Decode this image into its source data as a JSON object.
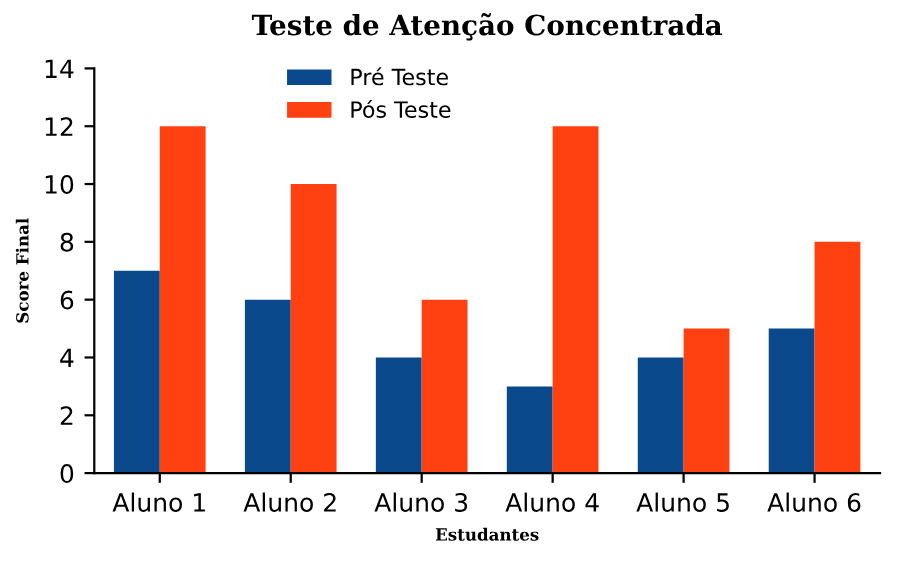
{
  "chart_data": {
    "type": "bar",
    "title": "Teste de Atenção Concentrada",
    "xlabel": "Estudantes",
    "ylabel": "Score Final",
    "categories": [
      "Aluno 1",
      "Aluno 2",
      "Aluno 3",
      "Aluno 4",
      "Aluno 5",
      "Aluno 6"
    ],
    "series": [
      {
        "name": "Pré Teste",
        "color": "#0a4a8c",
        "values": [
          7,
          6,
          4,
          3,
          4,
          5
        ]
      },
      {
        "name": "Pós Teste",
        "color": "#ff4010",
        "values": [
          12,
          10,
          6,
          12,
          5,
          8
        ]
      }
    ],
    "ylim": [
      0,
      14
    ],
    "yticks": [
      0,
      2,
      4,
      6,
      8,
      10,
      12,
      14
    ],
    "grid": false,
    "legend": "top"
  }
}
